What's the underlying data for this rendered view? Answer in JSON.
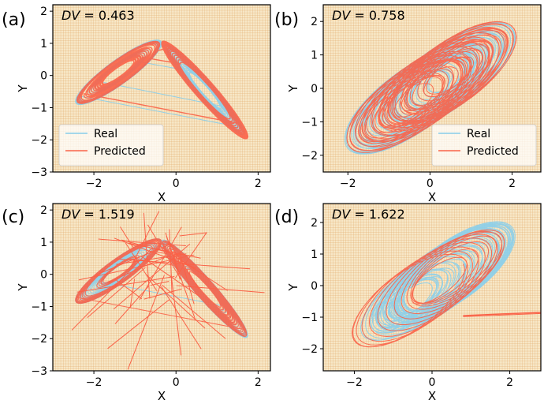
{
  "colors": {
    "real": "#87CEEB",
    "predicted": "#FA6248",
    "background": "#F7E7C7",
    "grid": "#E0A060"
  },
  "chart_data": [
    {
      "id": "a",
      "panel_label": "(a)",
      "type": "line",
      "dv_label": "DV",
      "dv_value": "= 0.463",
      "xlabel": "X",
      "ylabel": "Y",
      "xlim": [
        -3.0,
        2.3
      ],
      "ylim": [
        -3.0,
        2.2
      ],
      "xticks": [
        -2,
        0,
        2
      ],
      "yticks": [
        -3,
        -2,
        -1,
        0,
        1,
        2
      ],
      "legend": {
        "position": "bottom-left",
        "entries": [
          "Real",
          "Predicted"
        ]
      },
      "series": [
        {
          "name": "Real",
          "color": "#87CEEB",
          "attractor": "dense-boomerang"
        },
        {
          "name": "Predicted",
          "color": "#FA6248",
          "attractor": "dense-boomerang"
        }
      ]
    },
    {
      "id": "b",
      "panel_label": "(b)",
      "type": "line",
      "dv_label": "DV",
      "dv_value": "= 0.758",
      "xlabel": "X",
      "ylabel": "Y",
      "xlim": [
        -2.6,
        2.7
      ],
      "ylim": [
        -2.5,
        2.5
      ],
      "xticks": [
        -2,
        0,
        2
      ],
      "yticks": [
        -2,
        -1,
        0,
        1,
        2
      ],
      "legend": {
        "position": "bottom-right",
        "entries": [
          "Real",
          "Predicted"
        ]
      },
      "series": [
        {
          "name": "Real",
          "color": "#87CEEB",
          "attractor": "diagonal-ellipse"
        },
        {
          "name": "Predicted",
          "color": "#FA6248",
          "attractor": "diagonal-ellipse"
        }
      ]
    },
    {
      "id": "c",
      "panel_label": "(c)",
      "type": "line",
      "dv_label": "DV",
      "dv_value": "= 1.519",
      "xlabel": "X",
      "ylabel": "Y",
      "xlim": [
        -3.0,
        2.3
      ],
      "ylim": [
        -3.0,
        2.2
      ],
      "xticks": [
        -2,
        0,
        2
      ],
      "yticks": [
        -3,
        -2,
        -1,
        0,
        1,
        2
      ],
      "series": [
        {
          "name": "Real",
          "color": "#87CEEB",
          "attractor": "boomerang"
        },
        {
          "name": "Predicted",
          "color": "#FA6248",
          "attractor": "boomerang-with-spikes"
        }
      ]
    },
    {
      "id": "d",
      "panel_label": "(d)",
      "type": "line",
      "dv_label": "DV",
      "dv_value": "= 1.622",
      "xlabel": "X",
      "ylabel": "Y",
      "xlim": [
        -2.8,
        2.8
      ],
      "ylim": [
        -2.7,
        2.6
      ],
      "xticks": [
        -2,
        0,
        2
      ],
      "yticks": [
        -2,
        -1,
        0,
        1,
        2
      ],
      "series": [
        {
          "name": "Real",
          "color": "#87CEEB",
          "attractor": "diagonal-ellipse"
        },
        {
          "name": "Predicted",
          "color": "#FA6248",
          "attractor": "diagonal-ellipse-sparse"
        }
      ]
    }
  ]
}
